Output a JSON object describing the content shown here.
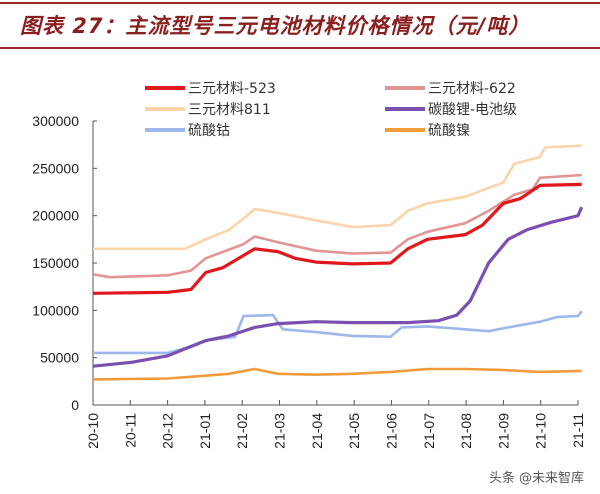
{
  "title": "图表 27：主流型号三元电池材料价格情况（元/吨）",
  "watermark": "头条 @未来智库",
  "chart_data": {
    "type": "line",
    "title": "图表 27：主流型号三元电池材料价格情况（元/吨）",
    "xlabel": "",
    "ylabel": "",
    "ylim": [
      0,
      300000
    ],
    "yticks": [
      "0",
      "50000",
      "100000",
      "150000",
      "200000",
      "250000",
      "300000"
    ],
    "xlim": [
      "2020-10-01",
      "2021-11-04"
    ],
    "xticks": [
      "20-10",
      "20-11",
      "20-12",
      "21-01",
      "21-02",
      "21-03",
      "21-04",
      "21-05",
      "21-06",
      "21-07",
      "21-08",
      "21-09",
      "21-10",
      "21-11"
    ],
    "grid": false,
    "legend": "top",
    "series": [
      {
        "name": "三元材料-523",
        "color": "#e0181c",
        "points": [
          [
            "2020-10-01",
            118000
          ],
          [
            "2020-12-01",
            119000
          ],
          [
            "2020-12-20",
            122000
          ],
          [
            "2021-01-01",
            140000
          ],
          [
            "2021-01-15",
            145000
          ],
          [
            "2021-02-01",
            158000
          ],
          [
            "2021-02-10",
            165000
          ],
          [
            "2021-03-01",
            162000
          ],
          [
            "2021-03-15",
            155000
          ],
          [
            "2021-04-01",
            151000
          ],
          [
            "2021-05-01",
            149000
          ],
          [
            "2021-06-01",
            150000
          ],
          [
            "2021-06-15",
            165000
          ],
          [
            "2021-07-01",
            175000
          ],
          [
            "2021-08-01",
            180000
          ],
          [
            "2021-08-15",
            190000
          ],
          [
            "2021-09-01",
            213000
          ],
          [
            "2021-09-15",
            218000
          ],
          [
            "2021-10-01",
            232000
          ],
          [
            "2021-11-04",
            233000
          ]
        ]
      },
      {
        "name": "三元材料-622",
        "color": "#e39494",
        "points": [
          [
            "2020-10-01",
            138000
          ],
          [
            "2020-10-15",
            135000
          ],
          [
            "2020-12-01",
            137000
          ],
          [
            "2020-12-20",
            142000
          ],
          [
            "2021-01-01",
            155000
          ],
          [
            "2021-02-01",
            170000
          ],
          [
            "2021-02-10",
            178000
          ],
          [
            "2021-03-01",
            172000
          ],
          [
            "2021-04-01",
            163000
          ],
          [
            "2021-05-01",
            160000
          ],
          [
            "2021-06-01",
            161000
          ],
          [
            "2021-06-15",
            175000
          ],
          [
            "2021-07-01",
            183000
          ],
          [
            "2021-08-01",
            192000
          ],
          [
            "2021-08-20",
            205000
          ],
          [
            "2021-09-10",
            222000
          ],
          [
            "2021-09-25",
            228000
          ],
          [
            "2021-10-01",
            240000
          ],
          [
            "2021-11-04",
            243000
          ]
        ]
      },
      {
        "name": "三元材料811",
        "color": "#fbd5a9",
        "points": [
          [
            "2020-10-01",
            165000
          ],
          [
            "2020-12-15",
            165000
          ],
          [
            "2021-01-01",
            175000
          ],
          [
            "2021-01-20",
            185000
          ],
          [
            "2021-02-01",
            197000
          ],
          [
            "2021-02-10",
            207000
          ],
          [
            "2021-03-01",
            203000
          ],
          [
            "2021-04-01",
            195000
          ],
          [
            "2021-05-01",
            188000
          ],
          [
            "2021-06-01",
            190000
          ],
          [
            "2021-06-15",
            205000
          ],
          [
            "2021-07-01",
            213000
          ],
          [
            "2021-08-01",
            220000
          ],
          [
            "2021-09-01",
            235000
          ],
          [
            "2021-09-10",
            255000
          ],
          [
            "2021-10-01",
            262000
          ],
          [
            "2021-10-05",
            272000
          ],
          [
            "2021-11-04",
            274000
          ]
        ]
      },
      {
        "name": "碳酸锂-电池级",
        "color": "#7b4fb0",
        "points": [
          [
            "2020-10-01",
            41000
          ],
          [
            "2020-11-01",
            45000
          ],
          [
            "2020-12-01",
            52000
          ],
          [
            "2021-01-01",
            68000
          ],
          [
            "2021-01-20",
            73000
          ],
          [
            "2021-02-10",
            82000
          ],
          [
            "2021-03-01",
            86000
          ],
          [
            "2021-04-01",
            88000
          ],
          [
            "2021-05-01",
            87000
          ],
          [
            "2021-06-15",
            87000
          ],
          [
            "2021-07-10",
            89000
          ],
          [
            "2021-07-25",
            95000
          ],
          [
            "2021-08-05",
            110000
          ],
          [
            "2021-08-20",
            150000
          ],
          [
            "2021-09-05",
            175000
          ],
          [
            "2021-09-20",
            185000
          ],
          [
            "2021-10-10",
            193000
          ],
          [
            "2021-11-01",
            200000
          ],
          [
            "2021-11-04",
            209000
          ]
        ]
      },
      {
        "name": "硫酸钴",
        "color": "#9db7ea",
        "points": [
          [
            "2020-10-01",
            55000
          ],
          [
            "2020-12-01",
            55000
          ],
          [
            "2020-12-15",
            60000
          ],
          [
            "2021-01-01",
            68000
          ],
          [
            "2021-01-25",
            72000
          ],
          [
            "2021-02-01",
            94000
          ],
          [
            "2021-02-25",
            95000
          ],
          [
            "2021-03-05",
            80000
          ],
          [
            "2021-04-01",
            77000
          ],
          [
            "2021-05-01",
            73000
          ],
          [
            "2021-06-01",
            72000
          ],
          [
            "2021-06-10",
            82000
          ],
          [
            "2021-07-01",
            83000
          ],
          [
            "2021-08-01",
            80000
          ],
          [
            "2021-08-20",
            78000
          ],
          [
            "2021-09-05",
            82000
          ],
          [
            "2021-10-01",
            88000
          ],
          [
            "2021-10-15",
            93000
          ],
          [
            "2021-11-01",
            94000
          ],
          [
            "2021-11-04",
            99000
          ]
        ]
      },
      {
        "name": "硫酸镍",
        "color": "#f39a3a",
        "points": [
          [
            "2020-10-01",
            27000
          ],
          [
            "2020-12-01",
            28000
          ],
          [
            "2021-01-01",
            31000
          ],
          [
            "2021-01-20",
            33000
          ],
          [
            "2021-02-10",
            38000
          ],
          [
            "2021-03-01",
            33000
          ],
          [
            "2021-04-01",
            32000
          ],
          [
            "2021-05-01",
            33000
          ],
          [
            "2021-06-01",
            35000
          ],
          [
            "2021-07-01",
            38000
          ],
          [
            "2021-08-01",
            38000
          ],
          [
            "2021-09-01",
            37000
          ],
          [
            "2021-10-01",
            35000
          ],
          [
            "2021-11-04",
            36000
          ]
        ]
      }
    ]
  }
}
